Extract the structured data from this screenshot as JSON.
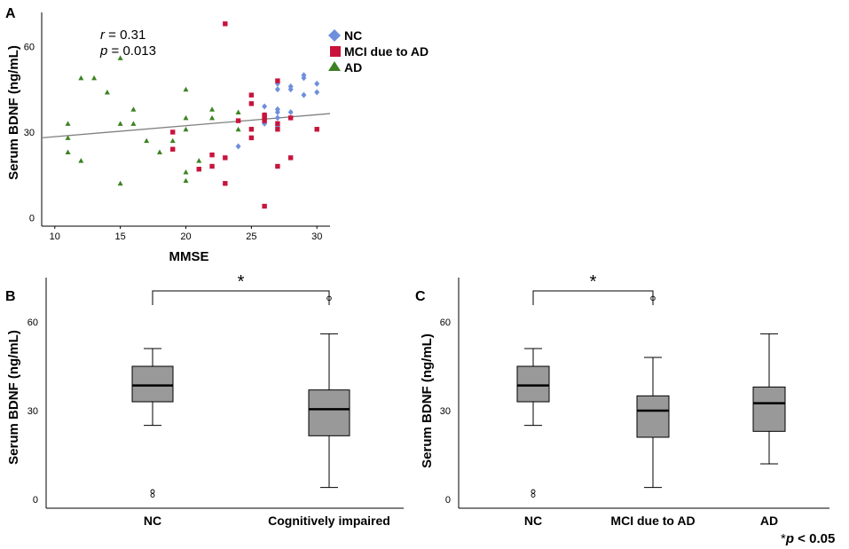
{
  "colors": {
    "NC": "#6e8fdc",
    "MCI": "#c8143c",
    "AD": "#3c8223",
    "box": "#999999",
    "fit": "#808080"
  },
  "chart_data": [
    {
      "id": "A",
      "type": "scatter",
      "panel_label": "A",
      "xlabel": "MMSE",
      "ylabel": "Serum BDNF (ng/mL)",
      "xlim": [
        9,
        31
      ],
      "ylim": [
        -3,
        72
      ],
      "xticks": [
        10,
        15,
        20,
        25,
        30
      ],
      "yticks": [
        0,
        30,
        60
      ],
      "stats": {
        "r_label": "r",
        "r_value": " = 0.31",
        "p_label": "p",
        "p_value": " = 0.013"
      },
      "fit_line": {
        "x": [
          9,
          31
        ],
        "y": [
          28.0,
          36.5
        ]
      },
      "legend": [
        "NC",
        "MCI due to AD",
        "AD"
      ],
      "series": [
        {
          "name": "NC",
          "key": "NC",
          "marker": "diamond",
          "points": [
            [
              24,
              25
            ],
            [
              26,
              33
            ],
            [
              26,
              35
            ],
            [
              26,
              39
            ],
            [
              26,
              36
            ],
            [
              27,
              32
            ],
            [
              27,
              35
            ],
            [
              27,
              37
            ],
            [
              27,
              38
            ],
            [
              27,
              47
            ],
            [
              27,
              45
            ],
            [
              28,
              45
            ],
            [
              28,
              46
            ],
            [
              28,
              37
            ],
            [
              29,
              43
            ],
            [
              29,
              49
            ],
            [
              29,
              50
            ],
            [
              30,
              44
            ],
            [
              30,
              47
            ]
          ]
        },
        {
          "name": "MCI due to AD",
          "key": "MCI",
          "marker": "square",
          "points": [
            [
              19,
              24
            ],
            [
              19,
              30
            ],
            [
              21,
              17
            ],
            [
              22,
              22
            ],
            [
              22,
              18
            ],
            [
              23,
              21
            ],
            [
              23,
              12
            ],
            [
              23,
              68
            ],
            [
              24,
              34
            ],
            [
              25,
              43
            ],
            [
              25,
              40
            ],
            [
              25,
              31
            ],
            [
              25,
              28
            ],
            [
              26,
              36
            ],
            [
              26,
              35
            ],
            [
              26,
              34
            ],
            [
              26,
              4
            ],
            [
              27,
              48
            ],
            [
              27,
              33
            ],
            [
              27,
              31
            ],
            [
              27,
              18
            ],
            [
              28,
              35
            ],
            [
              28,
              21
            ],
            [
              30,
              31
            ]
          ]
        },
        {
          "name": "AD",
          "key": "AD",
          "marker": "triangle",
          "points": [
            [
              11,
              33
            ],
            [
              11,
              28
            ],
            [
              11,
              23
            ],
            [
              12,
              49
            ],
            [
              12,
              20
            ],
            [
              13,
              49
            ],
            [
              14,
              44
            ],
            [
              15,
              56
            ],
            [
              15,
              33
            ],
            [
              15,
              12
            ],
            [
              16,
              38
            ],
            [
              16,
              33
            ],
            [
              17,
              27
            ],
            [
              18,
              23
            ],
            [
              19,
              27
            ],
            [
              20,
              45
            ],
            [
              20,
              35
            ],
            [
              20,
              31
            ],
            [
              20,
              16
            ],
            [
              20,
              13
            ],
            [
              21,
              20
            ],
            [
              22,
              38
            ],
            [
              22,
              35
            ],
            [
              24,
              31
            ],
            [
              24,
              37
            ]
          ]
        }
      ]
    },
    {
      "id": "B",
      "type": "box",
      "panel_label": "B",
      "ylabel": "Serum BDNF (ng/mL)",
      "ylim": [
        -3,
        75
      ],
      "yticks": [
        0,
        30,
        60
      ],
      "categories": [
        "NC",
        "Cognitively impaired"
      ],
      "boxes": [
        {
          "q1": 33,
          "median": 38.5,
          "q3": 45,
          "whisker_low": 25,
          "whisker_high": 51,
          "outliers": [],
          "extremes": [
            2
          ]
        },
        {
          "q1": 21.5,
          "median": 30.5,
          "q3": 37,
          "whisker_low": 4,
          "whisker_high": 56,
          "outliers": [
            68
          ],
          "extremes": []
        }
      ],
      "significance": {
        "from": 0,
        "to": 1,
        "label": "*"
      }
    },
    {
      "id": "C",
      "type": "box",
      "panel_label": "C",
      "ylabel": "Serum BDNF (ng/mL)",
      "ylim": [
        -3,
        75
      ],
      "yticks": [
        0,
        30,
        60
      ],
      "categories": [
        "NC",
        "MCI due to AD",
        "AD"
      ],
      "boxes": [
        {
          "q1": 33,
          "median": 38.5,
          "q3": 45,
          "whisker_low": 25,
          "whisker_high": 51,
          "outliers": [],
          "extremes": [
            2
          ]
        },
        {
          "q1": 21,
          "median": 30,
          "q3": 35,
          "whisker_low": 4,
          "whisker_high": 48,
          "outliers": [
            68
          ],
          "extremes": []
        },
        {
          "q1": 23,
          "median": 32.5,
          "q3": 38,
          "whisker_low": 12,
          "whisker_high": 56,
          "outliers": [],
          "extremes": []
        }
      ],
      "significance": {
        "from": 0,
        "to": 1,
        "label": "*"
      }
    }
  ],
  "footnote": {
    "star": "*",
    "p": "p",
    "rest": " < 0.05"
  }
}
